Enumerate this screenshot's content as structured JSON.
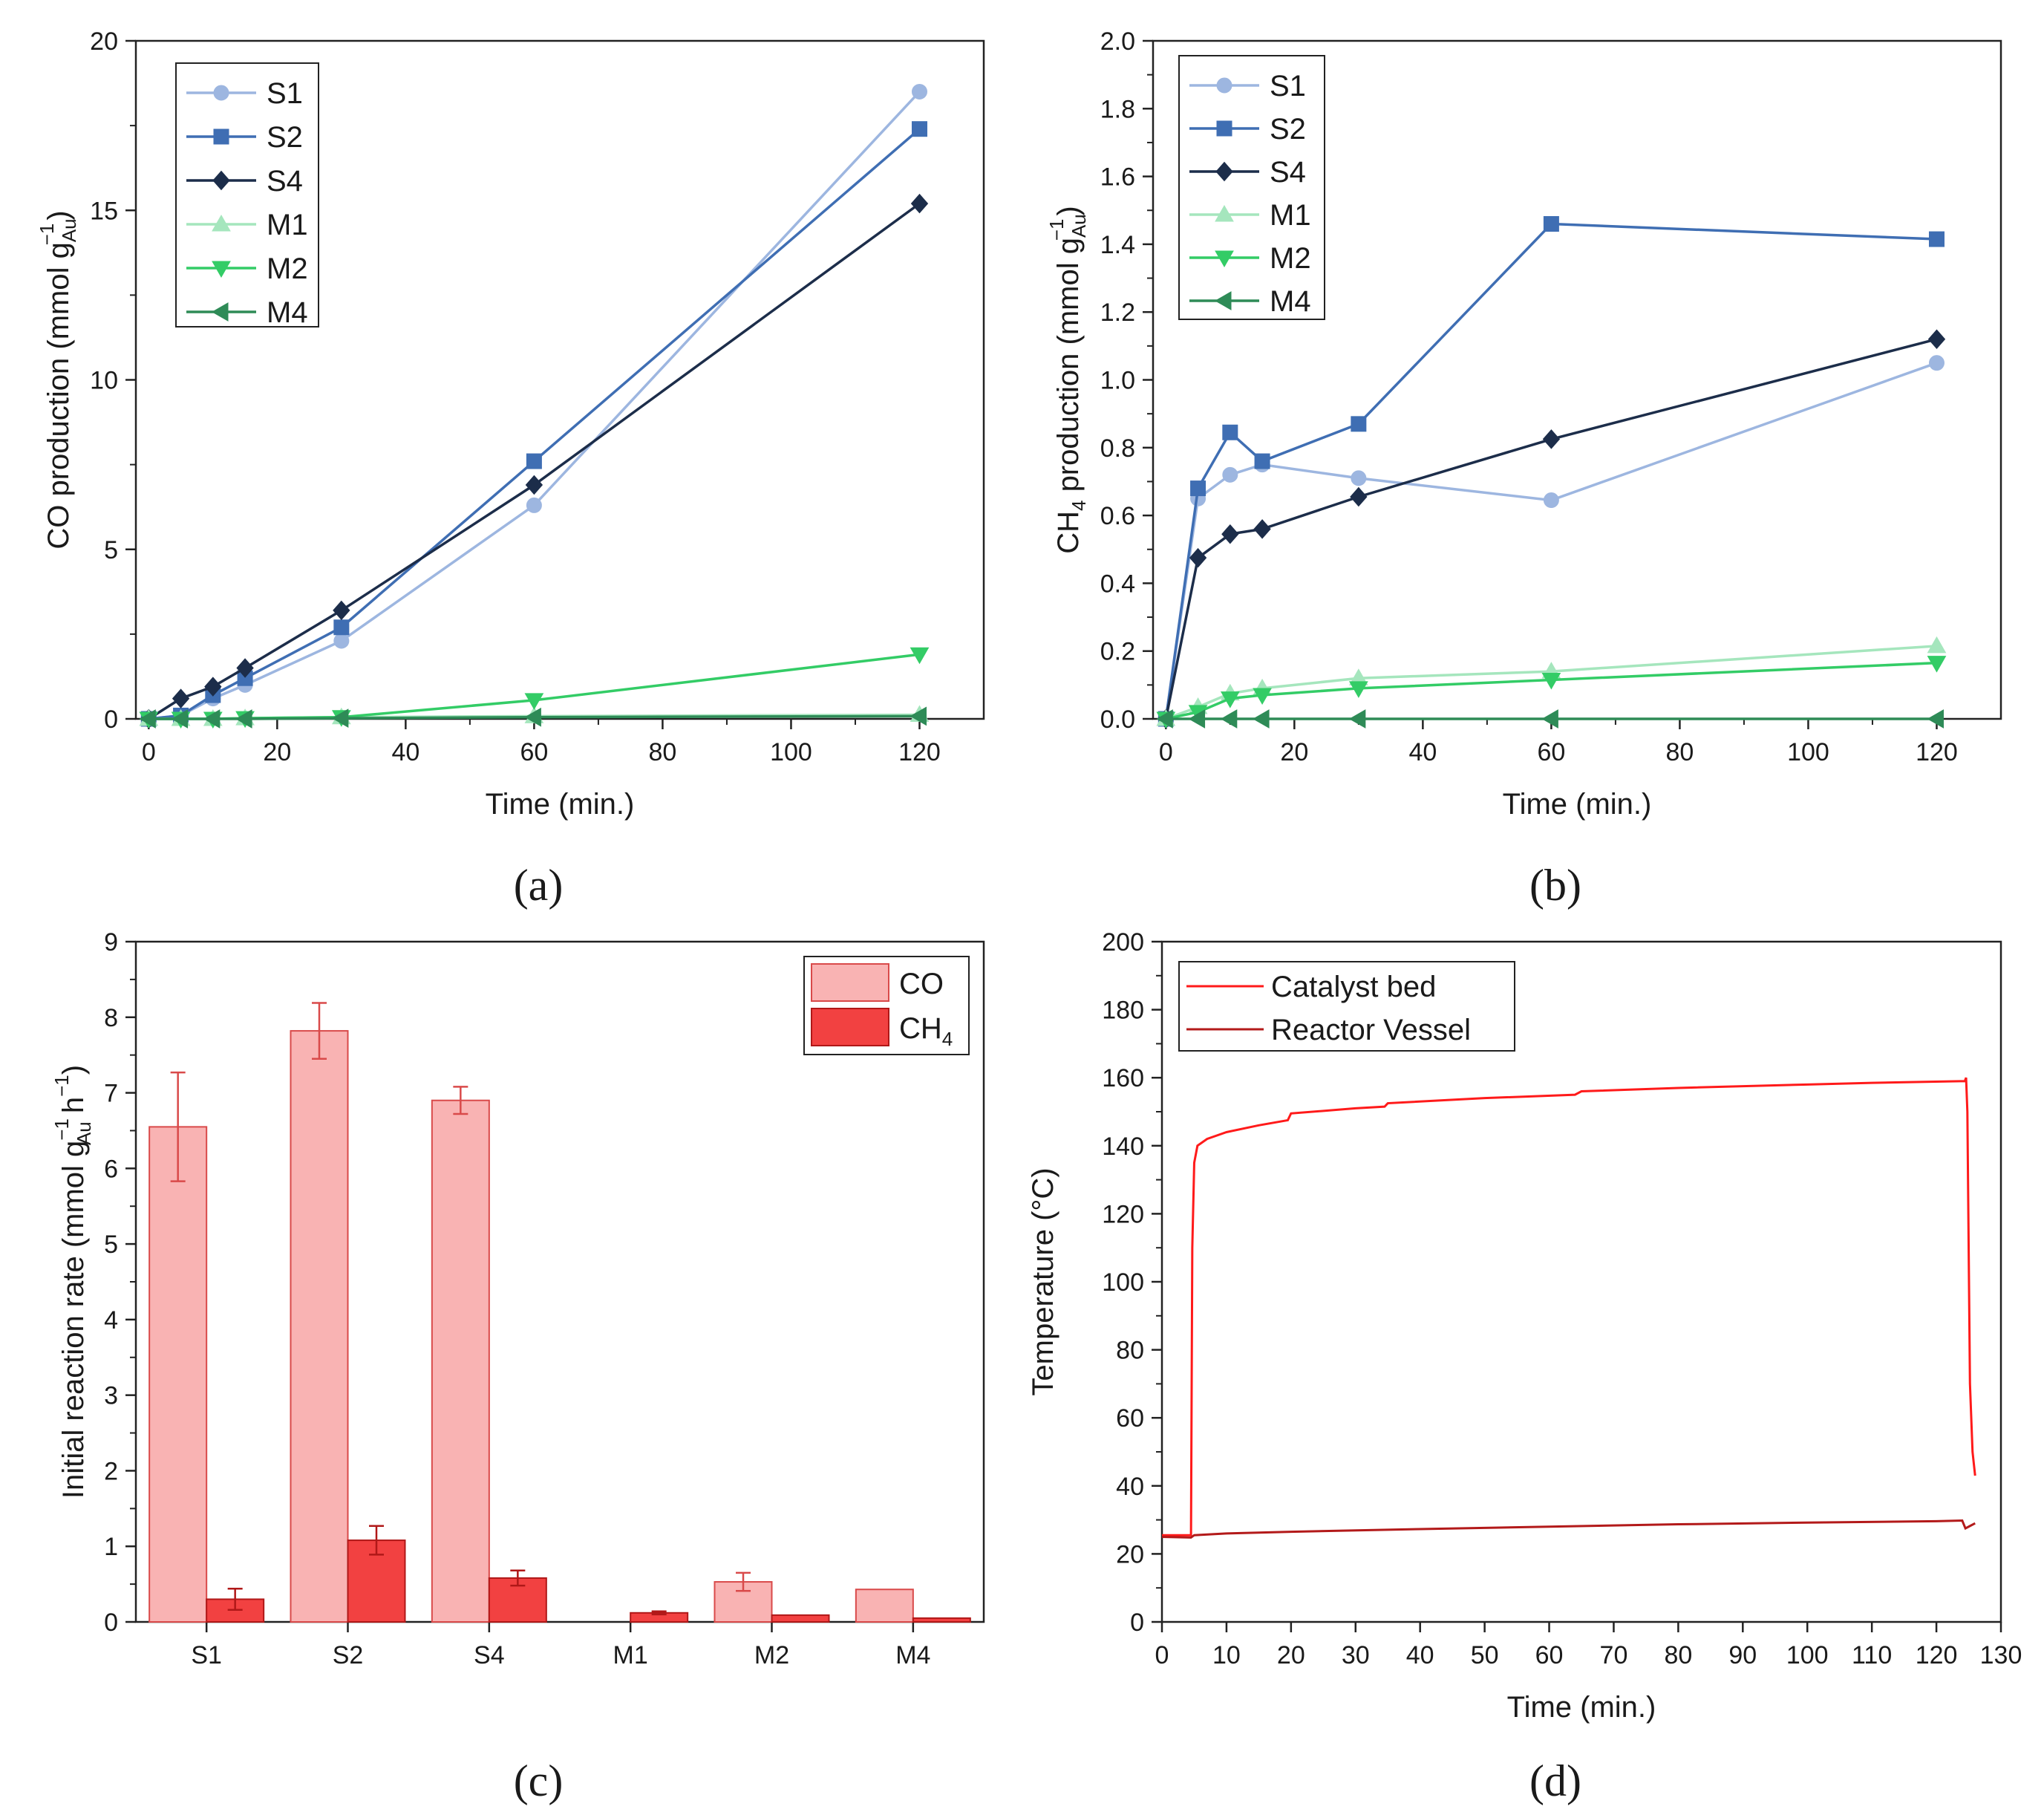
{
  "chart_data": [
    {
      "panel": "(a)",
      "type": "line",
      "xlabel": "Time (min.)",
      "ylabel": "CO production (mmol g",
      "ylabel_sub": "Au",
      "ylabel_sup": "−1",
      "ylabel_end": ")",
      "xlim": [
        -2,
        130
      ],
      "ylim": [
        0,
        20
      ],
      "xticks": [
        0,
        20,
        40,
        60,
        80,
        100,
        120
      ],
      "yticks": [
        0,
        5,
        10,
        15,
        20
      ],
      "legend_position": "top-left",
      "series": [
        {
          "name": "S1",
          "color": "#9db6e0",
          "marker": "circle",
          "x": [
            0,
            5,
            10,
            15,
            30,
            60,
            120
          ],
          "y": [
            0,
            0.1,
            0.6,
            1.0,
            2.3,
            6.3,
            18.5
          ]
        },
        {
          "name": "S2",
          "color": "#3f6eb3",
          "marker": "square",
          "x": [
            0,
            5,
            10,
            15,
            30,
            60,
            120
          ],
          "y": [
            0,
            0.1,
            0.7,
            1.2,
            2.7,
            7.6,
            17.4
          ]
        },
        {
          "name": "S4",
          "color": "#1c2d4a",
          "marker": "diamond",
          "x": [
            0,
            5,
            10,
            15,
            30,
            60,
            120
          ],
          "y": [
            0,
            0.6,
            0.95,
            1.5,
            3.2,
            6.9,
            15.2
          ]
        },
        {
          "name": "M1",
          "color": "#a5e6bd",
          "marker": "triangle-up",
          "x": [
            0,
            5,
            10,
            15,
            30,
            60,
            120
          ],
          "y": [
            0,
            0,
            0,
            0.02,
            0.05,
            0.08,
            0.12
          ]
        },
        {
          "name": "M2",
          "color": "#33cc66",
          "marker": "triangle-down",
          "x": [
            0,
            5,
            10,
            15,
            30,
            60,
            120
          ],
          "y": [
            0,
            0,
            0,
            0.02,
            0.05,
            0.55,
            1.9
          ]
        },
        {
          "name": "M4",
          "color": "#2e8b57",
          "marker": "triangle-left",
          "x": [
            0,
            5,
            10,
            15,
            30,
            60,
            120
          ],
          "y": [
            0,
            0,
            0,
            0,
            0.02,
            0.05,
            0.08
          ]
        }
      ]
    },
    {
      "panel": "(b)",
      "type": "line",
      "xlabel": "Time (min.)",
      "ylabel_pre": "CH",
      "ylabel_pre_sub": "4",
      "ylabel": " production (mmol g",
      "ylabel_sub": "Au",
      "ylabel_sup": "−1",
      "ylabel_end": ")",
      "xlim": [
        -2,
        130
      ],
      "ylim": [
        0,
        2.0
      ],
      "xticks": [
        0,
        20,
        40,
        60,
        80,
        100,
        120
      ],
      "yticks": [
        "0.0",
        "0.2",
        "0.4",
        "0.6",
        "0.8",
        "1.0",
        "1.2",
        "1.4",
        "1.6",
        "1.8",
        "2.0"
      ],
      "legend_position": "top-left",
      "series": [
        {
          "name": "S1",
          "color": "#9db6e0",
          "marker": "circle",
          "x": [
            0,
            5,
            10,
            15,
            30,
            60,
            120
          ],
          "y": [
            0,
            0.65,
            0.72,
            0.75,
            0.71,
            0.645,
            1.05
          ]
        },
        {
          "name": "S2",
          "color": "#3f6eb3",
          "marker": "square",
          "x": [
            0,
            5,
            10,
            15,
            30,
            60,
            120
          ],
          "y": [
            0,
            0.68,
            0.845,
            0.76,
            0.87,
            1.46,
            1.415
          ]
        },
        {
          "name": "S4",
          "color": "#1c2d4a",
          "marker": "diamond",
          "x": [
            0,
            5,
            10,
            15,
            30,
            60,
            120
          ],
          "y": [
            0,
            0.475,
            0.545,
            0.56,
            0.655,
            0.825,
            1.12
          ]
        },
        {
          "name": "M1",
          "color": "#a5e6bd",
          "marker": "triangle-up",
          "x": [
            0,
            5,
            10,
            15,
            30,
            60,
            120
          ],
          "y": [
            0,
            0.035,
            0.075,
            0.09,
            0.12,
            0.14,
            0.215
          ]
        },
        {
          "name": "M2",
          "color": "#33cc66",
          "marker": "triangle-down",
          "x": [
            0,
            5,
            10,
            15,
            30,
            60,
            120
          ],
          "y": [
            0,
            0.02,
            0.06,
            0.07,
            0.09,
            0.115,
            0.165
          ]
        },
        {
          "name": "M4",
          "color": "#2e8b57",
          "marker": "triangle-left",
          "x": [
            0,
            5,
            10,
            15,
            30,
            60,
            120
          ],
          "y": [
            0,
            0,
            0,
            0,
            0,
            0,
            0
          ]
        }
      ]
    },
    {
      "panel": "(c)",
      "type": "bar",
      "ylabel": "Initial reaction rate (mmol g",
      "ylabel_sup": "−1",
      "ylabel_sub": "Au",
      "ylabel_end": " h",
      "ylabel_sup2": "−1",
      "ylabel_close": ")",
      "categories": [
        "S1",
        "S2",
        "S4",
        "M1",
        "M2",
        "M4"
      ],
      "ylim": [
        0,
        9
      ],
      "yticks": [
        0,
        1,
        2,
        3,
        4,
        5,
        6,
        7,
        8,
        9
      ],
      "legend_position": "top-right",
      "series": [
        {
          "name": "CO",
          "color": "#f9b3b3",
          "edge": "#d94a4a",
          "values": [
            6.55,
            7.82,
            6.9,
            0,
            0.53,
            0.43
          ],
          "errors": [
            0.72,
            0.37,
            0.18,
            0,
            0.12,
            0
          ]
        },
        {
          "name": "CH",
          "name_sub": "4",
          "color": "#f24141",
          "edge": "#b01818",
          "values": [
            0.3,
            1.08,
            0.58,
            0.12,
            0.09,
            0.05
          ],
          "errors": [
            0.14,
            0.19,
            0.1,
            0.02,
            0,
            0
          ]
        }
      ]
    },
    {
      "panel": "(d)",
      "type": "line",
      "xlabel": "Time (min.)",
      "ylabel": "Temperature (°C)",
      "xlim": [
        0,
        130
      ],
      "ylim": [
        0,
        200
      ],
      "xticks": [
        0,
        10,
        20,
        30,
        40,
        50,
        60,
        70,
        80,
        90,
        100,
        110,
        120,
        130
      ],
      "yticks": [
        0,
        20,
        40,
        60,
        80,
        100,
        120,
        140,
        160,
        180,
        200
      ],
      "legend_position": "top-left",
      "series": [
        {
          "name": "Catalyst bed",
          "color": "#ff1a1a",
          "x": [
            0,
            4.5,
            4.7,
            5.0,
            5.5,
            7,
            10,
            15,
            19.5,
            20,
            30,
            34.5,
            35,
            50,
            64,
            65,
            80,
            100,
            110,
            124.4,
            124.6,
            124.8,
            125.2,
            125.6,
            126
          ],
          "y": [
            25.5,
            25.5,
            110,
            135,
            140,
            142,
            144,
            146,
            147.5,
            149.5,
            151,
            151.5,
            152.5,
            154,
            155,
            156,
            157,
            158,
            158.5,
            159,
            160,
            150,
            70,
            50,
            43
          ]
        },
        {
          "name": "Reactor Vessel",
          "color": "#b31a1a",
          "x": [
            0,
            4.5,
            5,
            10,
            20,
            40,
            60,
            80,
            100,
            120,
            124,
            124.5,
            125,
            126
          ],
          "y": [
            25,
            24.8,
            25.5,
            26,
            26.5,
            27.3,
            28,
            28.7,
            29.2,
            29.6,
            29.8,
            27.5,
            28,
            29
          ]
        }
      ]
    }
  ]
}
